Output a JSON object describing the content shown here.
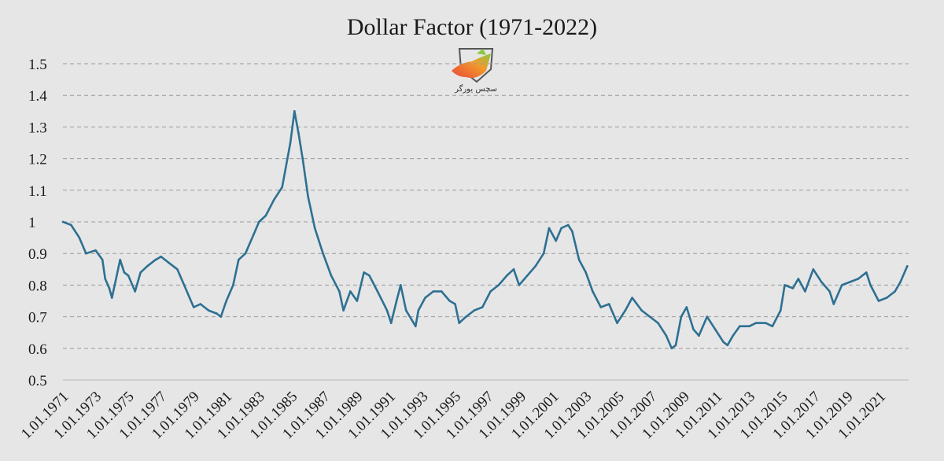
{
  "chart_data": {
    "type": "line",
    "title": "Dollar Factor (1971-2022)",
    "xlabel": "",
    "ylabel": "",
    "ylim": [
      0.5,
      1.5
    ],
    "yticks": [
      "0.5",
      "0.6",
      "0.7",
      "0.8",
      "0.9",
      "1",
      "1.1",
      "1.2",
      "1.3",
      "1.4",
      "1.5"
    ],
    "x_tick_labels": [
      "1.01.1971",
      "1.01.1973",
      "1.01.1975",
      "1.01.1977",
      "1.01.1979",
      "1.01.1981",
      "1.01.1983",
      "1.01.1985",
      "1.01.1987",
      "1.01.1989",
      "1.01.1991",
      "1.01.1993",
      "1.01.1995",
      "1.01.1997",
      "1.01.1999",
      "1.01.2001",
      "1.01.2003",
      "1.01.2005",
      "1.01.2007",
      "1.01.2009",
      "1.01.2011",
      "1.01.2013",
      "1.01.2015",
      "1.01.2017",
      "1.01.2019",
      "1.01.2021"
    ],
    "xlim": [
      "1971-01",
      "2022-10"
    ],
    "grid": true,
    "line_color": "#2e7092",
    "series": [
      {
        "points": [
          [
            "1971-01",
            1.0
          ],
          [
            "1971-07",
            0.99
          ],
          [
            "1972-01",
            0.95
          ],
          [
            "1972-06",
            0.9
          ],
          [
            "1973-01",
            0.91
          ],
          [
            "1973-06",
            0.88
          ],
          [
            "1973-08",
            0.82
          ],
          [
            "1973-11",
            0.79
          ],
          [
            "1974-01",
            0.76
          ],
          [
            "1974-03",
            0.8
          ],
          [
            "1974-07",
            0.88
          ],
          [
            "1974-10",
            0.84
          ],
          [
            "1975-01",
            0.83
          ],
          [
            "1975-06",
            0.78
          ],
          [
            "1975-10",
            0.84
          ],
          [
            "1976-03",
            0.86
          ],
          [
            "1976-09",
            0.88
          ],
          [
            "1977-01",
            0.89
          ],
          [
            "1977-07",
            0.87
          ],
          [
            "1978-01",
            0.85
          ],
          [
            "1978-06",
            0.8
          ],
          [
            "1978-10",
            0.76
          ],
          [
            "1979-01",
            0.73
          ],
          [
            "1979-06",
            0.74
          ],
          [
            "1979-12",
            0.72
          ],
          [
            "1980-06",
            0.71
          ],
          [
            "1980-09",
            0.7
          ],
          [
            "1981-01",
            0.75
          ],
          [
            "1981-06",
            0.8
          ],
          [
            "1981-10",
            0.88
          ],
          [
            "1982-03",
            0.9
          ],
          [
            "1982-09",
            0.96
          ],
          [
            "1983-01",
            1.0
          ],
          [
            "1983-06",
            1.02
          ],
          [
            "1983-12",
            1.07
          ],
          [
            "1984-06",
            1.11
          ],
          [
            "1984-12",
            1.25
          ],
          [
            "1985-03",
            1.35
          ],
          [
            "1985-06",
            1.28
          ],
          [
            "1985-09",
            1.2
          ],
          [
            "1986-01",
            1.08
          ],
          [
            "1986-06",
            0.98
          ],
          [
            "1986-12",
            0.9
          ],
          [
            "1987-06",
            0.83
          ],
          [
            "1987-12",
            0.78
          ],
          [
            "1988-03",
            0.72
          ],
          [
            "1988-08",
            0.78
          ],
          [
            "1989-01",
            0.75
          ],
          [
            "1989-06",
            0.84
          ],
          [
            "1989-10",
            0.83
          ],
          [
            "1990-04",
            0.78
          ],
          [
            "1990-11",
            0.72
          ],
          [
            "1991-02",
            0.68
          ],
          [
            "1991-06",
            0.75
          ],
          [
            "1991-09",
            0.8
          ],
          [
            "1992-01",
            0.72
          ],
          [
            "1992-08",
            0.67
          ],
          [
            "1992-10",
            0.72
          ],
          [
            "1993-03",
            0.76
          ],
          [
            "1993-09",
            0.78
          ],
          [
            "1994-03",
            0.78
          ],
          [
            "1994-09",
            0.75
          ],
          [
            "1995-01",
            0.74
          ],
          [
            "1995-04",
            0.68
          ],
          [
            "1995-09",
            0.7
          ],
          [
            "1996-03",
            0.72
          ],
          [
            "1996-09",
            0.73
          ],
          [
            "1997-03",
            0.78
          ],
          [
            "1997-09",
            0.8
          ],
          [
            "1998-03",
            0.83
          ],
          [
            "1998-08",
            0.85
          ],
          [
            "1998-12",
            0.8
          ],
          [
            "1999-06",
            0.83
          ],
          [
            "1999-12",
            0.86
          ],
          [
            "2000-06",
            0.9
          ],
          [
            "2000-10",
            0.98
          ],
          [
            "2001-03",
            0.94
          ],
          [
            "2001-07",
            0.98
          ],
          [
            "2001-12",
            0.99
          ],
          [
            "2002-03",
            0.97
          ],
          [
            "2002-08",
            0.88
          ],
          [
            "2003-01",
            0.84
          ],
          [
            "2003-06",
            0.78
          ],
          [
            "2003-12",
            0.73
          ],
          [
            "2004-06",
            0.74
          ],
          [
            "2004-12",
            0.68
          ],
          [
            "2005-06",
            0.72
          ],
          [
            "2005-11",
            0.76
          ],
          [
            "2006-06",
            0.72
          ],
          [
            "2006-12",
            0.7
          ],
          [
            "2007-06",
            0.68
          ],
          [
            "2007-12",
            0.64
          ],
          [
            "2008-04",
            0.6
          ],
          [
            "2008-07",
            0.61
          ],
          [
            "2008-11",
            0.7
          ],
          [
            "2009-03",
            0.73
          ],
          [
            "2009-08",
            0.66
          ],
          [
            "2009-12",
            0.64
          ],
          [
            "2010-06",
            0.7
          ],
          [
            "2010-12",
            0.66
          ],
          [
            "2011-06",
            0.62
          ],
          [
            "2011-09",
            0.61
          ],
          [
            "2012-01",
            0.64
          ],
          [
            "2012-06",
            0.67
          ],
          [
            "2013-01",
            0.67
          ],
          [
            "2013-06",
            0.68
          ],
          [
            "2014-01",
            0.68
          ],
          [
            "2014-06",
            0.67
          ],
          [
            "2014-12",
            0.72
          ],
          [
            "2015-03",
            0.8
          ],
          [
            "2015-09",
            0.79
          ],
          [
            "2016-01",
            0.82
          ],
          [
            "2016-06",
            0.78
          ],
          [
            "2016-12",
            0.85
          ],
          [
            "2017-06",
            0.81
          ],
          [
            "2017-12",
            0.78
          ],
          [
            "2018-03",
            0.74
          ],
          [
            "2018-09",
            0.8
          ],
          [
            "2019-03",
            0.81
          ],
          [
            "2019-09",
            0.82
          ],
          [
            "2020-03",
            0.84
          ],
          [
            "2020-06",
            0.8
          ],
          [
            "2020-12",
            0.75
          ],
          [
            "2021-06",
            0.76
          ],
          [
            "2021-12",
            0.78
          ],
          [
            "2022-04",
            0.81
          ],
          [
            "2022-09",
            0.86
          ]
        ]
      }
    ]
  }
}
